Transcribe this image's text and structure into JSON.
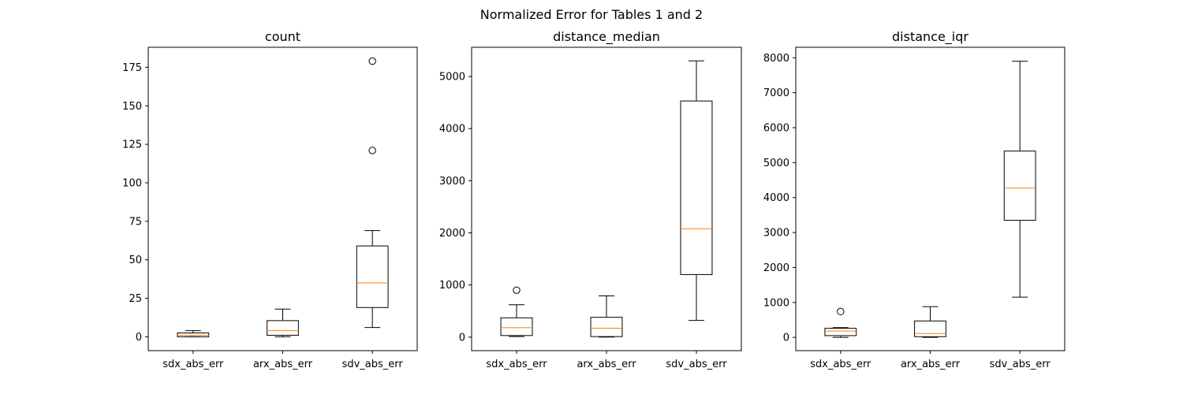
{
  "figure": {
    "suptitle": "Normalized Error for Tables 1 and 2"
  },
  "colors": {
    "median": "#ff7f0e",
    "box": "#000000",
    "background": "#ffffff"
  },
  "chart_data": [
    {
      "type": "boxplot",
      "title": "count",
      "categories": [
        "sdx_abs_err",
        "arx_abs_err",
        "sdv_abs_err"
      ],
      "ylim": [
        -9,
        188
      ],
      "yticks": [
        0,
        25,
        50,
        75,
        100,
        125,
        150,
        175
      ],
      "boxes": [
        {
          "whislo": 0,
          "q1": 0,
          "med": 1,
          "q3": 2.5,
          "whishi": 4,
          "fliers": []
        },
        {
          "whislo": 0,
          "q1": 1,
          "med": 4,
          "q3": 10.5,
          "whishi": 18,
          "fliers": []
        },
        {
          "whislo": 6,
          "q1": 19,
          "med": 35,
          "q3": 59,
          "whishi": 69,
          "fliers": [
            121,
            179
          ]
        }
      ]
    },
    {
      "type": "boxplot",
      "title": "distance_median",
      "categories": [
        "sdx_abs_err",
        "arx_abs_err",
        "sdv_abs_err"
      ],
      "ylim": [
        -260,
        5560
      ],
      "yticks": [
        0,
        1000,
        2000,
        3000,
        4000,
        5000
      ],
      "boxes": [
        {
          "whislo": 10,
          "q1": 30,
          "med": 180,
          "q3": 370,
          "whishi": 620,
          "fliers": [
            900
          ]
        },
        {
          "whislo": 0,
          "q1": 10,
          "med": 170,
          "q3": 380,
          "whishi": 790,
          "fliers": []
        },
        {
          "whislo": 320,
          "q1": 1200,
          "med": 2080,
          "q3": 4530,
          "whishi": 5300,
          "fliers": []
        }
      ]
    },
    {
      "type": "boxplot",
      "title": "distance_iqr",
      "categories": [
        "sdx_abs_err",
        "arx_abs_err",
        "sdv_abs_err"
      ],
      "ylim": [
        -380,
        8300
      ],
      "yticks": [
        0,
        1000,
        2000,
        3000,
        4000,
        5000,
        6000,
        7000,
        8000
      ],
      "boxes": [
        {
          "whislo": 0,
          "q1": 50,
          "med": 180,
          "q3": 260,
          "whishi": 280,
          "fliers": [
            740
          ]
        },
        {
          "whislo": 0,
          "q1": 20,
          "med": 110,
          "q3": 470,
          "whishi": 880,
          "fliers": []
        },
        {
          "whislo": 1150,
          "q1": 3350,
          "med": 4270,
          "q3": 5330,
          "whishi": 7900,
          "fliers": []
        }
      ]
    }
  ]
}
